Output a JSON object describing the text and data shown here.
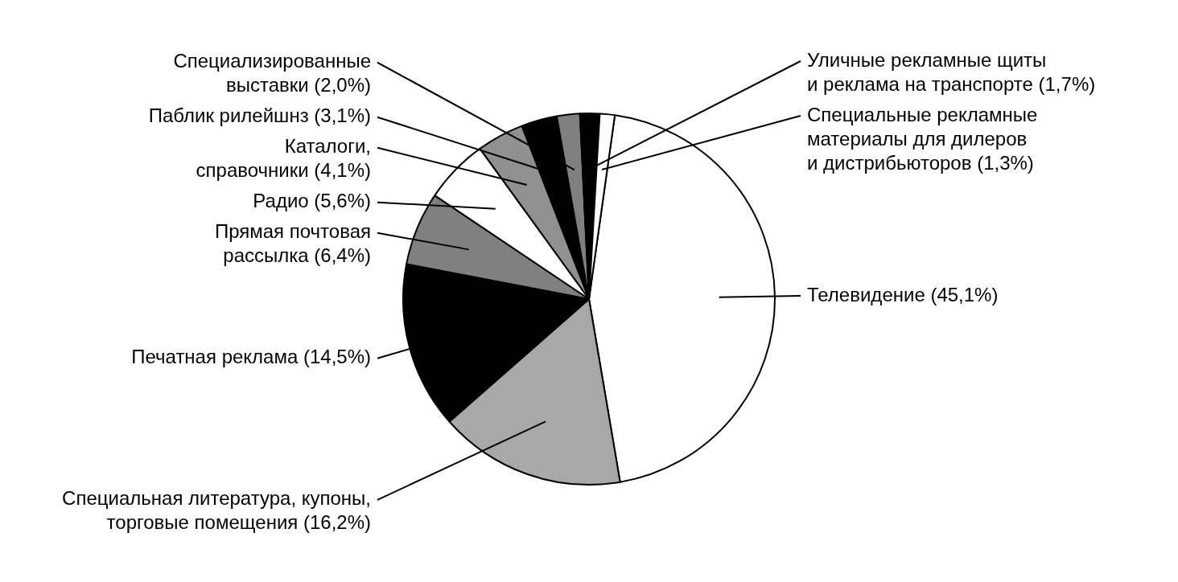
{
  "chart_data": {
    "type": "pie",
    "categories": [
      "Телевидение (45,1%)",
      "Специальная литература, купоны,\nторговые помещения (16,2%)",
      "Печатная реклама (14,5%)",
      "Прямая почтовая\nрассылка (6,4%)",
      "Радио (5,6%)",
      "Каталоги,\nсправочники (4,1%)",
      "Паблик рилейшнз (3,1%)",
      "Специализированные\nвыставки (2,0%)",
      "Уличные рекламные щиты\nи реклама на транспорте (1,7%)",
      "Специальные рекламные\nматериалы для дилеров\nи дистрибьюторов (1,3%)"
    ],
    "values": [
      45.1,
      16.2,
      14.5,
      6.4,
      5.6,
      4.1,
      3.1,
      2.0,
      1.7,
      1.3
    ],
    "colors": [
      "#ffffff",
      "#a8a8a8",
      "#000000",
      "#808080",
      "#ffffff",
      "#909090",
      "#000000",
      "#808080",
      "#000000",
      "#ffffff"
    ],
    "legend": false
  }
}
